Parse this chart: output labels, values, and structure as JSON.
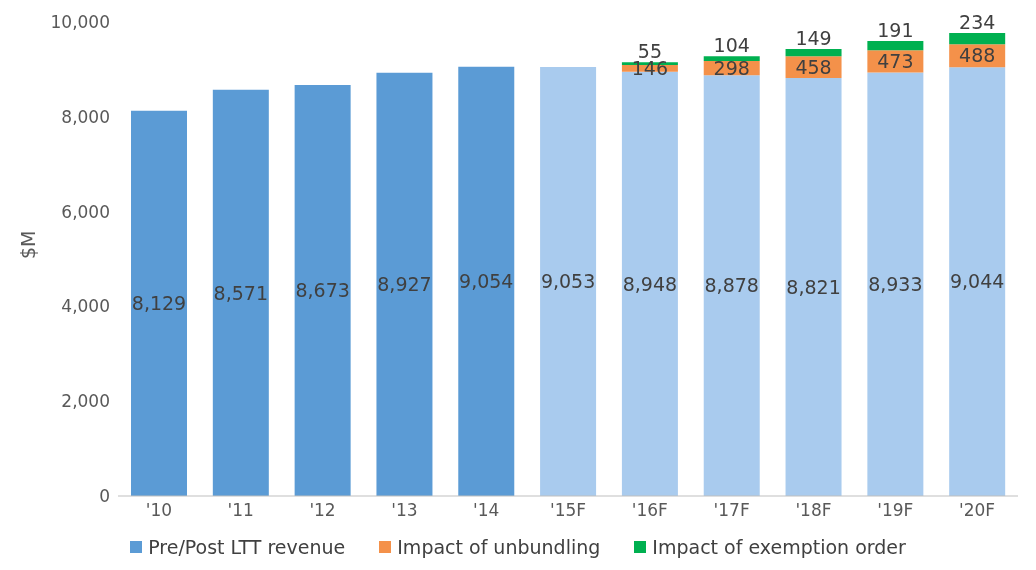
{
  "chart_data": {
    "type": "bar",
    "stacked": true,
    "ylabel": "$M",
    "categories": [
      "'10",
      "'11",
      "'12",
      "'13",
      "'14",
      "'15F",
      "'16F",
      "'17F",
      "'18F",
      "'19F",
      "'20F"
    ],
    "series": [
      {
        "name": "Pre/Post LTT revenue",
        "color": "#5b9bd5",
        "colors": [
          "#5b9bd5",
          "#5b9bd5",
          "#5b9bd5",
          "#5b9bd5",
          "#5b9bd5",
          "#a9cbee",
          "#a9cbee",
          "#a9cbee",
          "#a9cbee",
          "#a9cbee",
          "#a9cbee"
        ],
        "values": [
          8129,
          8571,
          8673,
          8927,
          9054,
          9053,
          8948,
          8878,
          8821,
          8933,
          9044
        ],
        "value_labels": [
          "8,129",
          "8,571",
          "8,673",
          "8,927",
          "9,054",
          "9,053",
          "8,948",
          "8,878",
          "8,821",
          "8,933",
          "9,044"
        ]
      },
      {
        "name": "Impact of unbundling",
        "color": "#f4914a",
        "values": [
          null,
          null,
          null,
          null,
          null,
          null,
          146,
          298,
          458,
          473,
          488
        ],
        "value_labels": [
          null,
          null,
          null,
          null,
          null,
          null,
          "146",
          "298",
          "458",
          "473",
          "488"
        ]
      },
      {
        "name": "Impact of exemption order",
        "color": "#00b050",
        "values": [
          null,
          null,
          null,
          null,
          null,
          null,
          55,
          104,
          149,
          191,
          234
        ],
        "value_labels": [
          null,
          null,
          null,
          null,
          null,
          null,
          "55",
          "104",
          "149",
          "191",
          "234"
        ]
      }
    ],
    "ylim": [
      0,
      10000
    ],
    "yticks": [
      0,
      {
        "value": 2000,
        "label": "2,000"
      },
      {
        "value": 4000,
        "label": "4,000"
      },
      {
        "value": 6000,
        "label": "6,000"
      },
      {
        "value": 8000,
        "label": "8,000"
      },
      {
        "value": 10000,
        "label": "10,000"
      }
    ],
    "grid": false,
    "legend": "bottom"
  }
}
